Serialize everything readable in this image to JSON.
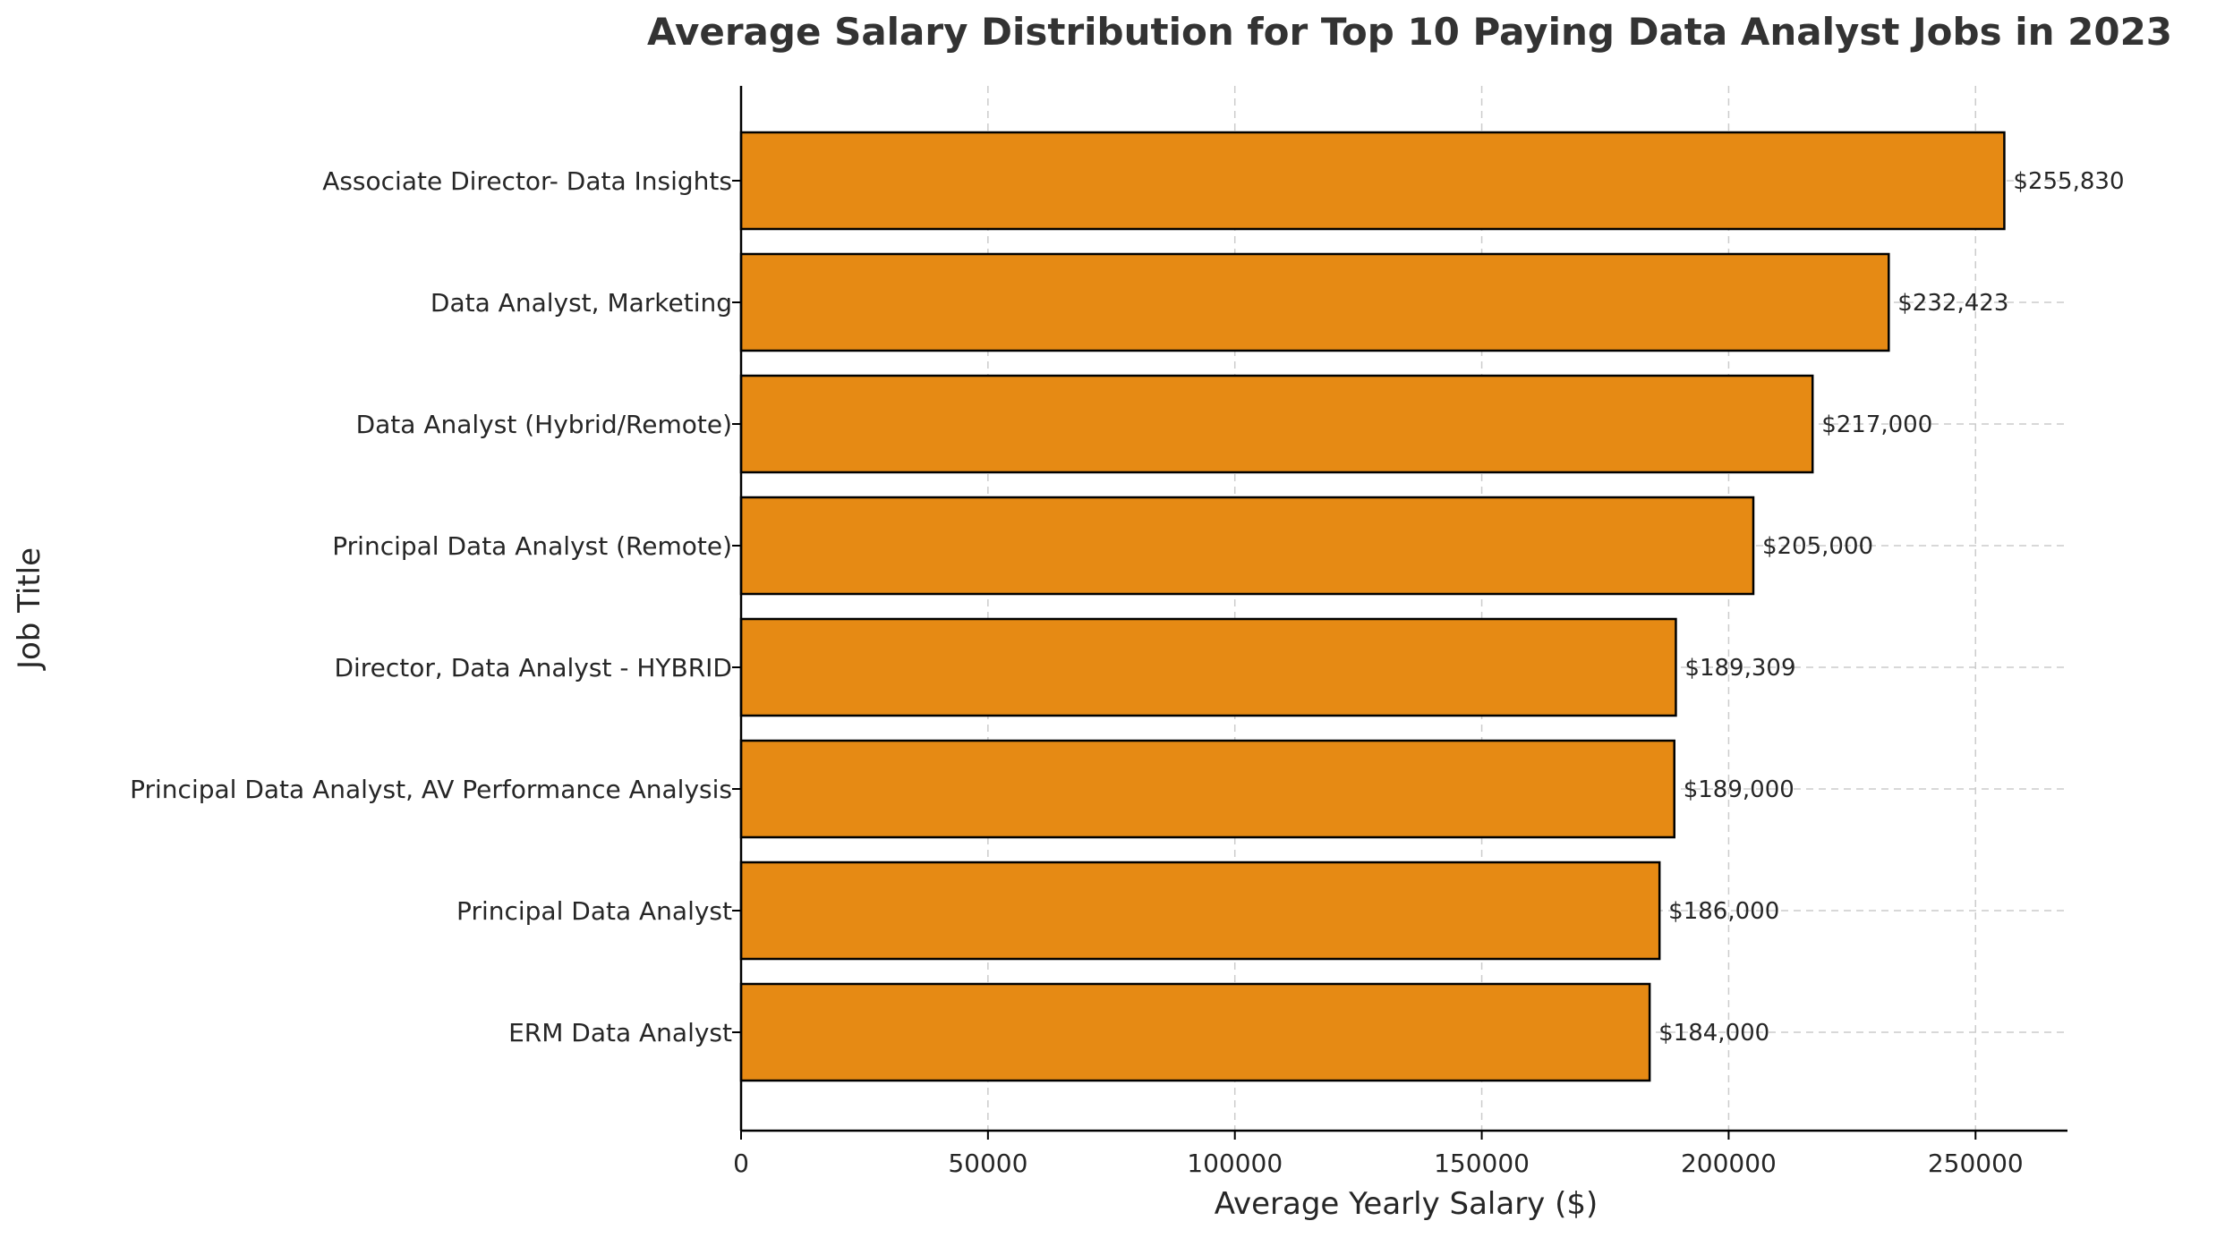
{
  "chart_data": {
    "type": "bar",
    "orientation": "horizontal",
    "title": "Average Salary Distribution for Top 10 Paying Data Analyst Jobs in 2023",
    "xlabel": "Average Yearly Salary ($)",
    "ylabel": "Job Title",
    "categories": [
      "Associate Director- Data Insights",
      "Data Analyst, Marketing",
      "Data Analyst (Hybrid/Remote)",
      "Principal Data Analyst (Remote)",
      "Director, Data Analyst - HYBRID",
      "Principal Data Analyst, AV Performance Analysis",
      "Principal Data Analyst",
      "ERM Data Analyst"
    ],
    "values": [
      255830,
      232423,
      217000,
      205000,
      189309,
      189000,
      186000,
      184000
    ],
    "data_labels": [
      "$255,830",
      "$232,423",
      "$217,000",
      "$205,000",
      "$189,309",
      "$189,000",
      "$186,000",
      "$184,000"
    ],
    "xlim": [
      0,
      268620
    ],
    "xticks": [
      0,
      50000,
      100000,
      150000,
      200000,
      250000
    ],
    "xtick_labels": [
      "0",
      "50000",
      "100000",
      "150000",
      "200000",
      "250000"
    ],
    "grid": true,
    "colors": {
      "bar_fill": "#E68A14",
      "bar_edge": "#000000",
      "grid": "#cccccc",
      "text": "#262626",
      "title": "#333333"
    }
  }
}
